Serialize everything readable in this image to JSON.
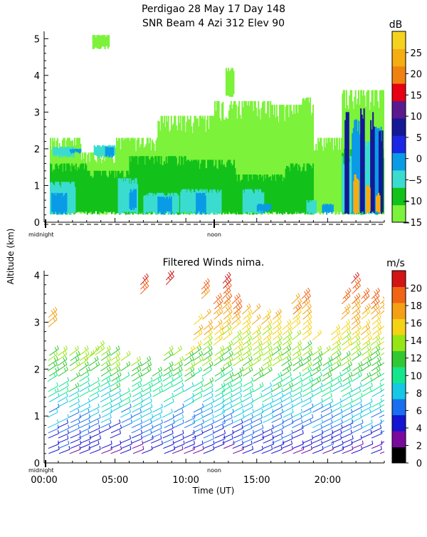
{
  "titles": {
    "line1": "Perdigao  28 May 17 Day 148",
    "line2": "SNR Beam 4 Azi 312 Elev 90",
    "wind_title": "Filtered Winds nima."
  },
  "y_shared_label": "Altitude (km)",
  "x_label": "Time (UT)",
  "time_markers": {
    "midnight": "midnight",
    "noon": "noon"
  },
  "chart_data": [
    {
      "type": "heatmap",
      "title": "SNR Beam 4 Azi 312 Elev 90",
      "ylabel": "Altitude (km)",
      "ylim": [
        0,
        5.2
      ],
      "yticks": [
        "0",
        "1",
        "2",
        "3",
        "4",
        "5"
      ],
      "xlim_hours": [
        0,
        24
      ],
      "colorbar": {
        "unit": "dB",
        "ticks": [
          "25",
          "20",
          "15",
          "10",
          "5",
          "0",
          "−5",
          "−10",
          "−15"
        ],
        "range": [
          -15,
          30
        ],
        "colors": [
          "#7cf23a",
          "#12c21a",
          "#3bdcd0",
          "#0a9be6",
          "#1a28e6",
          "#141896",
          "#5a1a8e",
          "#e60012",
          "#f08212",
          "#f5ad12",
          "#f5d21e"
        ]
      },
      "layers": [
        {
          "level": -14,
          "blobs": [
            [
              0.4,
              2.6,
              0.2,
              2.3
            ],
            [
              2.6,
              5,
              0.2,
              1.9
            ],
            [
              5,
              8,
              0.2,
              2.3
            ],
            [
              8,
              12,
              0.2,
              2.9
            ],
            [
              12,
              16,
              0.2,
              3.3
            ],
            [
              16,
              19,
              0.2,
              3.2
            ],
            [
              19,
              21,
              0.2,
              2.3
            ],
            [
              21,
              24,
              0.2,
              3.6
            ],
            [
              3.4,
              4.6,
              4.7,
              5.1
            ],
            [
              6.9,
              7.2,
              0.8,
              1.4
            ],
            [
              12.8,
              13.4,
              3.4,
              4.2
            ],
            [
              18.2,
              18.8,
              2.6,
              3.4
            ]
          ]
        },
        {
          "level": -9,
          "blobs": [
            [
              0.4,
              3,
              0.2,
              1.6
            ],
            [
              3,
              6,
              0.2,
              1.4
            ],
            [
              6,
              10,
              0.2,
              1.8
            ],
            [
              10,
              13.5,
              0.2,
              1.7
            ],
            [
              13.5,
              17,
              0.2,
              1.3
            ],
            [
              17,
              19,
              0.2,
              1.6
            ],
            [
              21,
              24,
              0.2,
              2.0
            ]
          ]
        },
        {
          "level": -6,
          "blobs": [
            [
              0.4,
              2.2,
              0.2,
              1.1
            ],
            [
              0.6,
              2.1,
              1.75,
              2.05
            ],
            [
              3.5,
              5,
              1.75,
              2.1
            ],
            [
              5.2,
              6.6,
              0.2,
              1.2
            ],
            [
              7,
              9.5,
              0.2,
              0.8
            ],
            [
              9.6,
              12.5,
              0.2,
              0.9
            ],
            [
              14,
              15.5,
              0.2,
              0.9
            ],
            [
              18.5,
              19.2,
              0.2,
              0.6
            ],
            [
              21,
              22,
              0.2,
              1.8
            ],
            [
              22.2,
              23.2,
              0.2,
              2.2
            ]
          ]
        },
        {
          "level": 0,
          "blobs": [
            [
              0.5,
              1.6,
              0.2,
              0.8
            ],
            [
              1.8,
              2.6,
              1.85,
              2.0
            ],
            [
              4.3,
              4.9,
              1.75,
              2.05
            ],
            [
              6,
              6.5,
              0.3,
              0.9
            ],
            [
              8,
              9,
              0.2,
              0.7
            ],
            [
              10.7,
              11.4,
              0.2,
              0.8
            ],
            [
              15,
              16,
              0.25,
              0.5
            ],
            [
              19.6,
              20.4,
              0.2,
              0.5
            ],
            [
              21.7,
              22.3,
              0.2,
              2.8
            ],
            [
              23.3,
              23.8,
              0.2,
              2.6
            ]
          ]
        },
        {
          "level": 8,
          "blobs": [
            [
              21.2,
              21.5,
              0.2,
              3.0
            ],
            [
              22.3,
              22.6,
              0.2,
              3.1
            ],
            [
              23.0,
              23.3,
              0.2,
              3.0
            ],
            [
              23.6,
              23.9,
              0.2,
              2.5
            ]
          ]
        },
        {
          "level": 22,
          "blobs": [
            [
              21.8,
              22.2,
              0.2,
              1.3
            ],
            [
              22.7,
              23.0,
              0.2,
              1.0
            ],
            [
              23.4,
              23.7,
              0.2,
              0.8
            ]
          ]
        }
      ]
    },
    {
      "type": "scatter",
      "title": "Filtered Winds nima.",
      "xlabel": "Time (UT)",
      "ylabel": "Altitude (km)",
      "ylim": [
        0,
        4.1
      ],
      "yticks": [
        "0",
        "1",
        "2",
        "3",
        "4"
      ],
      "xlim_hours": [
        0,
        24
      ],
      "xticks": [
        "00:00",
        "05:00",
        "10:00",
        "15:00",
        "20:00"
      ],
      "colorbar": {
        "unit": "m/s",
        "ticks": [
          "20",
          "18",
          "16",
          "14",
          "12",
          "10",
          "8",
          "6",
          "4",
          "2",
          "0"
        ],
        "range": [
          0,
          22
        ],
        "colors": [
          "#000000",
          "#7a0a9e",
          "#1414d2",
          "#1a6ef0",
          "#14c8e6",
          "#14e68c",
          "#32c832",
          "#96e614",
          "#f5d214",
          "#f5a014",
          "#f06414",
          "#d21414"
        ]
      },
      "profiles": [
        {
          "t": 0.3,
          "top": 2.4
        },
        {
          "t": 1.0,
          "top": 2.4
        },
        {
          "t": 1.8,
          "top": 2.3
        },
        {
          "t": 2.5,
          "top": 2.3
        },
        {
          "t": 3.2,
          "top": 2.3
        },
        {
          "t": 4.0,
          "top": 2.3
        },
        {
          "t": 4.7,
          "top": 2.3
        },
        {
          "t": 5.4,
          "top": 2.3
        },
        {
          "t": 6.2,
          "top": 2.1
        },
        {
          "t": 6.9,
          "top": 2.1
        },
        {
          "t": 7.6,
          "top": 2.0
        },
        {
          "t": 8.4,
          "top": 2.3
        },
        {
          "t": 9.1,
          "top": 2.4
        },
        {
          "t": 9.9,
          "top": 2.5
        },
        {
          "t": 10.5,
          "top": 3.0
        },
        {
          "t": 11.2,
          "top": 3.2
        },
        {
          "t": 12.0,
          "top": 3.5
        },
        {
          "t": 12.6,
          "top": 3.9
        },
        {
          "t": 13.3,
          "top": 3.4
        },
        {
          "t": 14.0,
          "top": 3.2
        },
        {
          "t": 14.7,
          "top": 3.2
        },
        {
          "t": 15.4,
          "top": 3.2
        },
        {
          "t": 16.1,
          "top": 3.1
        },
        {
          "t": 16.8,
          "top": 3.0
        },
        {
          "t": 17.5,
          "top": 3.4
        },
        {
          "t": 18.2,
          "top": 3.5
        },
        {
          "t": 18.9,
          "top": 2.7
        },
        {
          "t": 19.6,
          "top": 2.3
        },
        {
          "t": 20.3,
          "top": 2.8
        },
        {
          "t": 21.0,
          "top": 3.5
        },
        {
          "t": 21.7,
          "top": 3.9
        },
        {
          "t": 22.4,
          "top": 3.6
        },
        {
          "t": 23.1,
          "top": 3.5
        },
        {
          "t": 23.7,
          "top": 3.4
        }
      ],
      "extra_tufts": [
        {
          "t": 0.3,
          "y0": 2.9,
          "y1": 3.1
        },
        {
          "t": 6.8,
          "y0": 3.6,
          "y1": 3.9
        },
        {
          "t": 8.6,
          "y0": 3.8,
          "y1": 3.9
        },
        {
          "t": 11.1,
          "y0": 3.5,
          "y1": 3.7
        },
        {
          "t": 2.9,
          "y0": 2.2,
          "y1": 2.3
        },
        {
          "t": 3.6,
          "y0": 2.3,
          "y1": 2.4
        }
      ]
    }
  ]
}
